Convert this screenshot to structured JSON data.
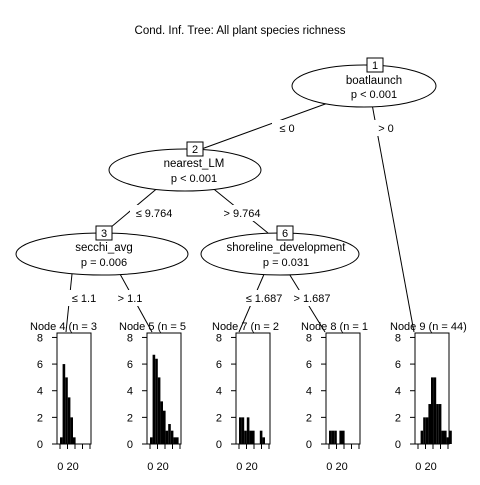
{
  "title": "Cond. Inf. Tree: All plant  species richness",
  "inner_nodes": [
    {
      "id": "1",
      "variable": "boatlaunch",
      "p": "p < 0.001"
    },
    {
      "id": "2",
      "variable": "nearest_LM",
      "p": "p < 0.001"
    },
    {
      "id": "3",
      "variable": "secchi_avg",
      "p": "p = 0.006"
    },
    {
      "id": "6",
      "variable": "shoreline_development",
      "p": "p = 0.031"
    }
  ],
  "edges": [
    {
      "label": "≤ 0"
    },
    {
      "label": "> 0"
    },
    {
      "label": "≤ 9.764"
    },
    {
      "label": "> 9.764"
    },
    {
      "label": "≤ 1.1"
    },
    {
      "label": "> 1.1"
    },
    {
      "label": "≤ 1.687"
    },
    {
      "label": "> 1.687"
    }
  ],
  "terminal_nodes": [
    {
      "label": "Node 4 (n = 3",
      "y_ticks": [
        "8",
        "6",
        "4",
        "2",
        "0"
      ],
      "x_tick": "0 20",
      "bars": [
        0.5,
        6,
        5,
        3.5,
        2,
        0.5
      ]
    },
    {
      "label": "Node 5 (n = 5",
      "y_ticks": [
        "8",
        "6",
        "4",
        "2",
        "0"
      ],
      "x_tick": "0 20",
      "bars": [
        0.5,
        6.7,
        6.4,
        5,
        3.2,
        2.5,
        1,
        1.5,
        1,
        0.5,
        0.5
      ]
    },
    {
      "label": "Node 7 (n = 2",
      "y_ticks": [
        "8",
        "6",
        "4",
        "2",
        "0"
      ],
      "x_tick": "0 20",
      "bars": [
        2,
        2,
        1,
        2,
        1,
        1,
        0,
        0,
        1,
        0.5
      ]
    },
    {
      "label": "Node 8 (n = 1",
      "y_ticks": [
        "8",
        "6",
        "4",
        "2",
        "0"
      ],
      "x_tick": "0 20",
      "bars": [
        1,
        1,
        1,
        0,
        1,
        1
      ]
    },
    {
      "label": "Node 9 (n = 44)",
      "y_ticks": [
        "8",
        "6",
        "4",
        "2",
        "0"
      ],
      "x_tick": "0 20",
      "bars": [
        0,
        1,
        2,
        2,
        3,
        5,
        5,
        3,
        3,
        1,
        1,
        0.5,
        1
      ]
    }
  ]
}
